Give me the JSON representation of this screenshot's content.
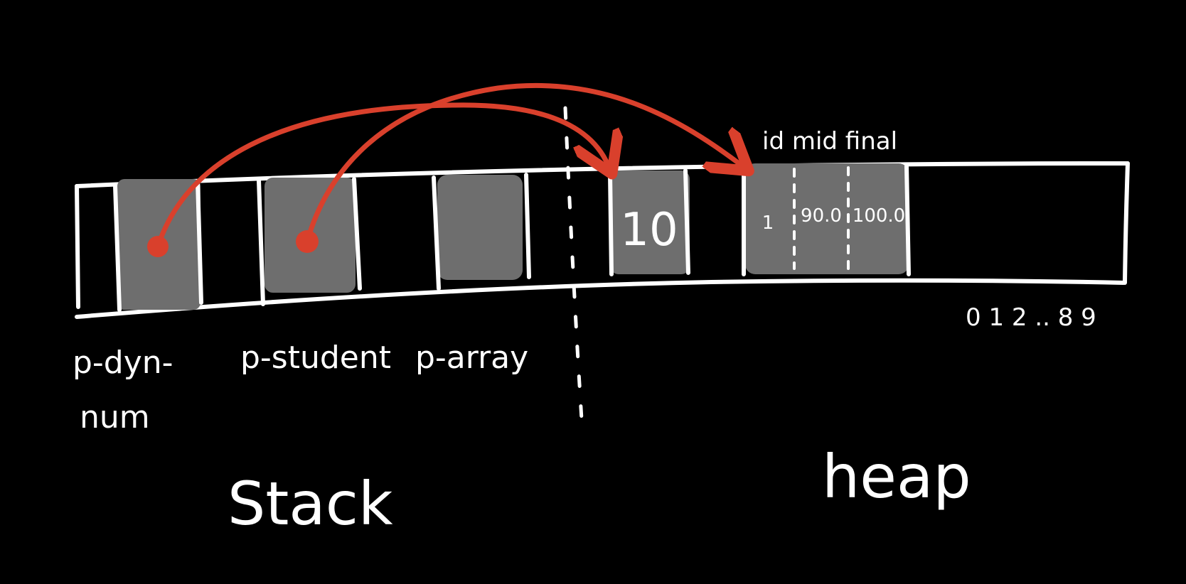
{
  "diagram": {
    "stack": {
      "title": "Stack",
      "variables": [
        {
          "id": "p_dyn_num",
          "label_line1": "p-dyn-",
          "label_line2": "num",
          "points_to": "heap-int"
        },
        {
          "id": "p_student",
          "label_line1": "p-student",
          "label_line2": "",
          "points_to": "heap-student"
        },
        {
          "id": "p_array",
          "label_line1": "p-array",
          "label_line2": "",
          "points_to": ""
        }
      ]
    },
    "heap": {
      "title": "heap",
      "int_value": "10",
      "student": {
        "header": "id mid final",
        "id_value": "1",
        "mid_value": "90.0",
        "final_value": "100.0"
      },
      "array_indices": "0 1 2 .. 8 9"
    },
    "colors": {
      "background": "#000000",
      "ink": "#ffffff",
      "cell_fill": "#6e6e6e",
      "pointer": "#d9402c"
    }
  }
}
